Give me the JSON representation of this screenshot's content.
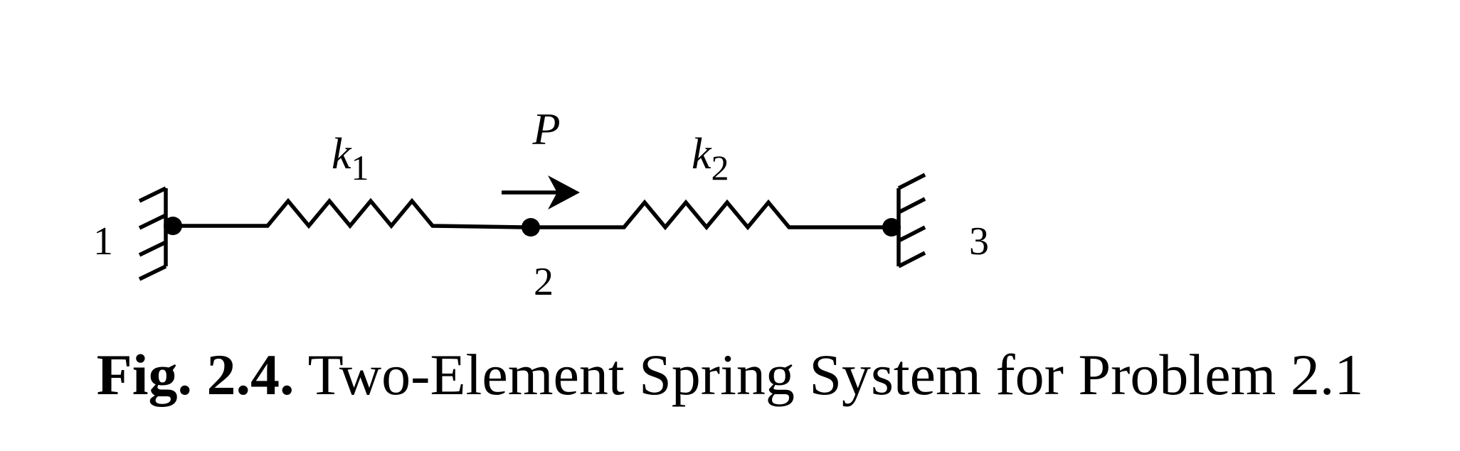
{
  "diagram": {
    "nodes": [
      {
        "id": "1",
        "label": "1",
        "support": "fixed-wall"
      },
      {
        "id": "2",
        "label": "2",
        "support": "free"
      },
      {
        "id": "3",
        "label": "3",
        "support": "fixed-wall"
      }
    ],
    "springs": [
      {
        "from": "1",
        "to": "2",
        "label_base": "k",
        "label_sub": "1"
      },
      {
        "from": "2",
        "to": "3",
        "label_base": "k",
        "label_sub": "2"
      }
    ],
    "load": {
      "node": "2",
      "label": "P",
      "direction": "right"
    }
  },
  "caption": {
    "figure_number": "Fig. 2.4.",
    "title": "Two-Element Spring System for Problem 2.1"
  }
}
